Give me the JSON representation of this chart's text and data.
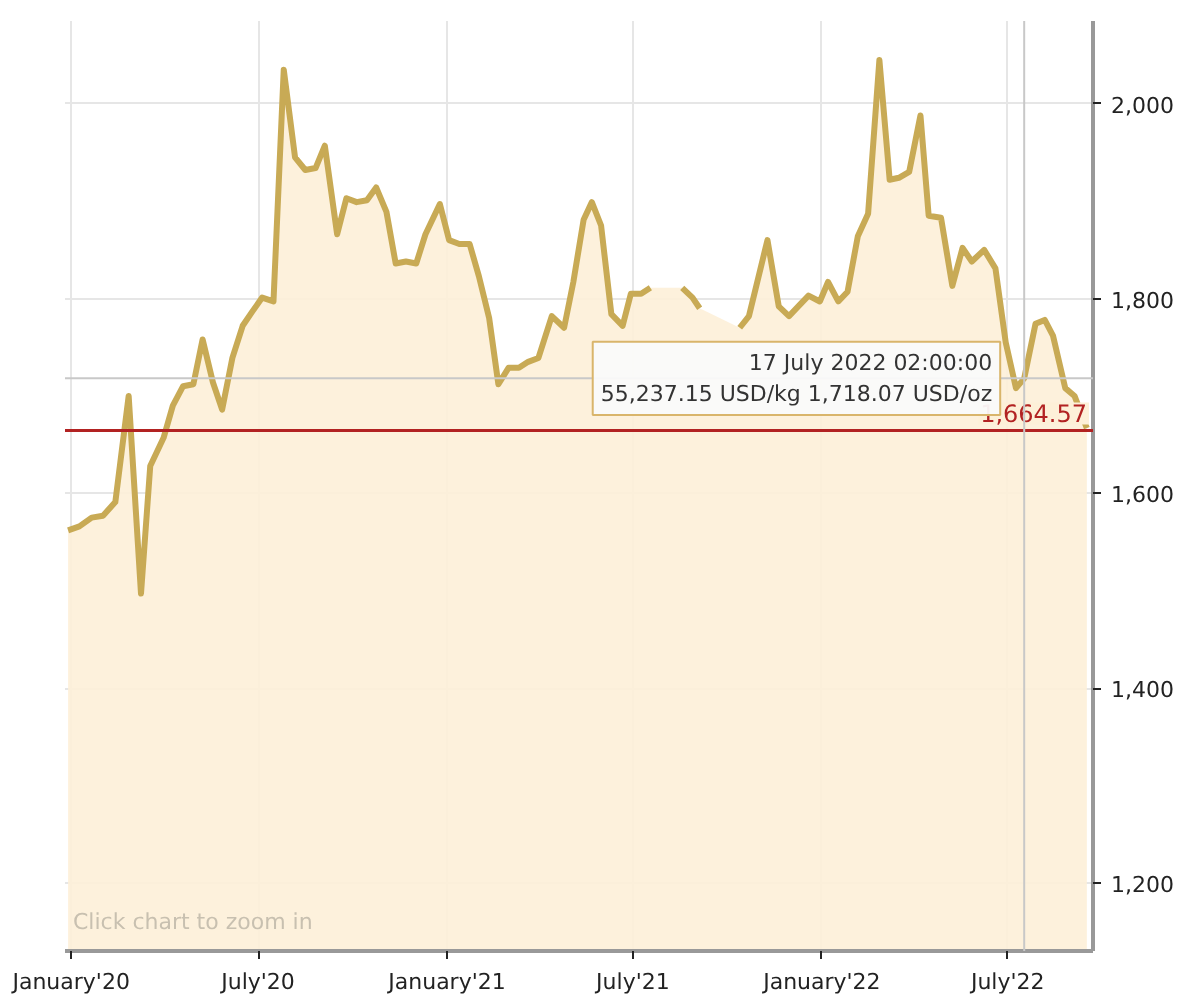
{
  "chart_data": {
    "type": "area",
    "x": [
      "2019-12-29",
      "2020-01-09",
      "2020-01-21",
      "2020-02-01",
      "2020-02-13",
      "2020-02-26",
      "2020-03-09",
      "2020-03-18",
      "2020-03-31",
      "2020-04-09",
      "2020-04-19",
      "2020-04-29",
      "2020-05-08",
      "2020-05-18",
      "2020-05-27",
      "2020-06-06",
      "2020-06-16",
      "2020-06-25",
      "2020-07-05",
      "2020-07-16",
      "2020-07-26",
      "2020-08-06",
      "2020-08-16",
      "2020-08-26",
      "2020-09-04",
      "2020-09-16",
      "2020-09-25",
      "2020-10-05",
      "2020-10-15",
      "2020-10-24",
      "2020-11-03",
      "2020-11-12",
      "2020-11-22",
      "2020-12-02",
      "2020-12-11",
      "2020-12-25",
      "2021-01-03",
      "2021-01-13",
      "2021-01-23",
      "2021-02-01",
      "2021-02-11",
      "2021-02-20",
      "2021-03-02",
      "2021-03-12",
      "2021-03-21",
      "2021-03-31",
      "2021-04-13",
      "2021-04-25",
      "2021-05-04",
      "2021-05-14",
      "2021-05-22",
      "2021-05-31",
      "2021-06-10",
      "2021-06-21",
      "2021-06-29",
      "2021-07-09",
      "2021-07-18",
      "2021-08-03",
      "2021-08-18",
      "2021-08-28",
      "2021-09-04",
      "2021-09-20",
      "2021-10-03",
      "2021-10-13",
      "2021-10-22",
      "2021-11-09",
      "2021-11-20",
      "2021-11-30",
      "2021-12-09",
      "2021-12-19",
      "2021-12-30",
      "2022-01-07",
      "2022-01-17",
      "2022-01-26",
      "2022-02-05",
      "2022-02-15",
      "2022-02-26",
      "2022-03-08",
      "2022-03-17",
      "2022-03-27",
      "2022-04-07",
      "2022-04-15",
      "2022-04-27",
      "2022-05-08",
      "2022-05-18",
      "2022-05-27",
      "2022-06-08",
      "2022-06-19",
      "2022-06-29",
      "2022-07-09",
      "2022-07-17",
      "2022-07-28",
      "2022-08-06",
      "2022-08-14",
      "2022-08-26",
      "2022-09-04",
      "2022-09-16"
    ],
    "series": [
      {
        "color": "#c8aa55",
        "values": [
          1562,
          1566,
          1575,
          1577,
          1591,
          1700,
          1497,
          1628,
          1657,
          1690,
          1710,
          1712,
          1758,
          1714,
          1686,
          1739,
          1772,
          1786,
          1801,
          1797,
          2035,
          1945,
          1932,
          1934,
          1957,
          1866,
          1903,
          1899,
          1901,
          1914,
          1889,
          1836,
          1838,
          1836,
          1866,
          1897,
          1860,
          1856,
          1856,
          1823,
          1780,
          1712,
          1729,
          1729,
          1735,
          1739,
          1782,
          1770,
          1817,
          1881,
          1899,
          1875,
          1784,
          1772,
          1805,
          1805,
          1811,
          null,
          1811,
          1801,
          1790,
          null,
          null,
          1770,
          1782,
          1860,
          1792,
          1782,
          1792,
          1803,
          1797,
          1817,
          1797,
          1807,
          1864,
          1887,
          2045,
          1922,
          1924,
          1930,
          1988,
          1885,
          1883,
          1813,
          1852,
          1838,
          1850,
          1831,
          1755,
          1708,
          1718,
          1774,
          1778,
          1762,
          1708,
          1700,
          1667
        ]
      }
    ],
    "xlim": [
      "2019-12-26",
      "2022-09-22"
    ],
    "xticks": [
      {
        "value": "2020-01-01",
        "label": "January'20"
      },
      {
        "value": "2020-07-01",
        "label": "July'20"
      },
      {
        "value": "2021-01-01",
        "label": "January'21"
      },
      {
        "value": "2021-07-01",
        "label": "July'21"
      },
      {
        "value": "2022-01-01",
        "label": "January'22"
      },
      {
        "value": "2022-07-01",
        "label": "July'22"
      }
    ],
    "ylim": [
      1130,
      2085
    ],
    "yticks": [
      {
        "value": 1200,
        "label": "1,200"
      },
      {
        "value": 1400,
        "label": "1,400"
      },
      {
        "value": 1600,
        "label": "1,600"
      },
      {
        "value": 1800,
        "label": "1,800"
      },
      {
        "value": 2000,
        "label": "2,000"
      }
    ],
    "grid": true,
    "ref_lines": [
      {
        "axis": "y",
        "value": 1664.57,
        "label": "1,664.57",
        "color": "#b22222"
      },
      {
        "axis": "x",
        "value": "2022-07-17",
        "color": "#c8c8c8"
      },
      {
        "axis": "y",
        "value": 1718.07,
        "color": "#c8c8c8"
      }
    ],
    "annotations": [
      {
        "text": "17 July 2022 02:00:00\n55,237.15 USD/kg 1,718.07 USD/oz",
        "x": "2022-07-17",
        "y": 1718.07
      },
      "Click chart to zoom in"
    ]
  }
}
